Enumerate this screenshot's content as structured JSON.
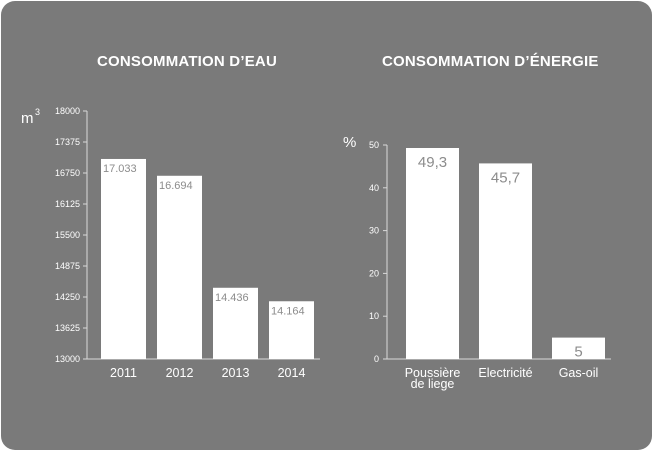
{
  "colors": {
    "background": "#7a7a7a",
    "bar": "#ffffff",
    "axis": "#d9d9d9",
    "text": "#ffffff",
    "value_text": "#8c8c8c"
  },
  "chart_data": [
    {
      "type": "bar",
      "title": "CONSOMMATION D’EAU",
      "ylabel": "m",
      "ylabel_superscript": "3",
      "categories": [
        "2011",
        "2012",
        "2013",
        "2014"
      ],
      "values": [
        17033,
        16694,
        14436,
        14164
      ],
      "value_labels": [
        "17.033",
        "16.694",
        "14.436",
        "14.164"
      ],
      "ylim": [
        13000,
        18000
      ],
      "yticks": [
        "13000",
        "13625",
        "14250",
        "14875",
        "15500",
        "16125",
        "16750",
        "17375",
        "18000"
      ],
      "grid": false,
      "legend": "none"
    },
    {
      "type": "bar",
      "title": "CONSOMMATION D’ÉNERGIE",
      "ylabel": "%",
      "categories": [
        [
          "Poussière",
          "de liege"
        ],
        [
          "Electricité"
        ],
        [
          "Gas-oil"
        ]
      ],
      "values": [
        49.3,
        45.7,
        5
      ],
      "value_labels": [
        "49,3",
        "45,7",
        "5"
      ],
      "ylim": [
        0,
        50
      ],
      "yticks": [
        "0",
        "10",
        "20",
        "30",
        "40",
        "50"
      ],
      "grid": false,
      "legend": "none"
    }
  ]
}
